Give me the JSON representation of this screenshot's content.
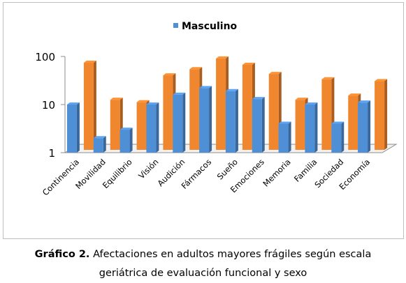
{
  "chart_data": {
    "type": "bar",
    "style": "3d-clustered-column",
    "yscale": "log",
    "ylim": [
      1,
      100
    ],
    "yticks": [
      "1",
      "10",
      "100"
    ],
    "grid": false,
    "legend_position": "top",
    "categories": [
      "Continencia",
      "Movilidad",
      "Equilibrio",
      "Visión",
      "Audición",
      "Fármacos",
      "Sueño",
      "Emociones",
      "Memoria",
      "Familia",
      "Sociedad",
      "Economía"
    ],
    "series": [
      {
        "name": "Masculino",
        "color": "#4f8fd6",
        "values": [
          10,
          2,
          3,
          10,
          16,
          22,
          19,
          13,
          4,
          10,
          4,
          11
        ]
      },
      {
        "name": "",
        "color": "#f0862e",
        "values": [
          53,
          9,
          8,
          29,
          39,
          65,
          48,
          31,
          9,
          24,
          11,
          22
        ]
      }
    ]
  },
  "caption": {
    "label": "Gráfico 2.",
    "line1": "Afectaciones en adultos mayores frágiles según escala",
    "line2": "geriátrica de evaluación funcional y sexo"
  }
}
